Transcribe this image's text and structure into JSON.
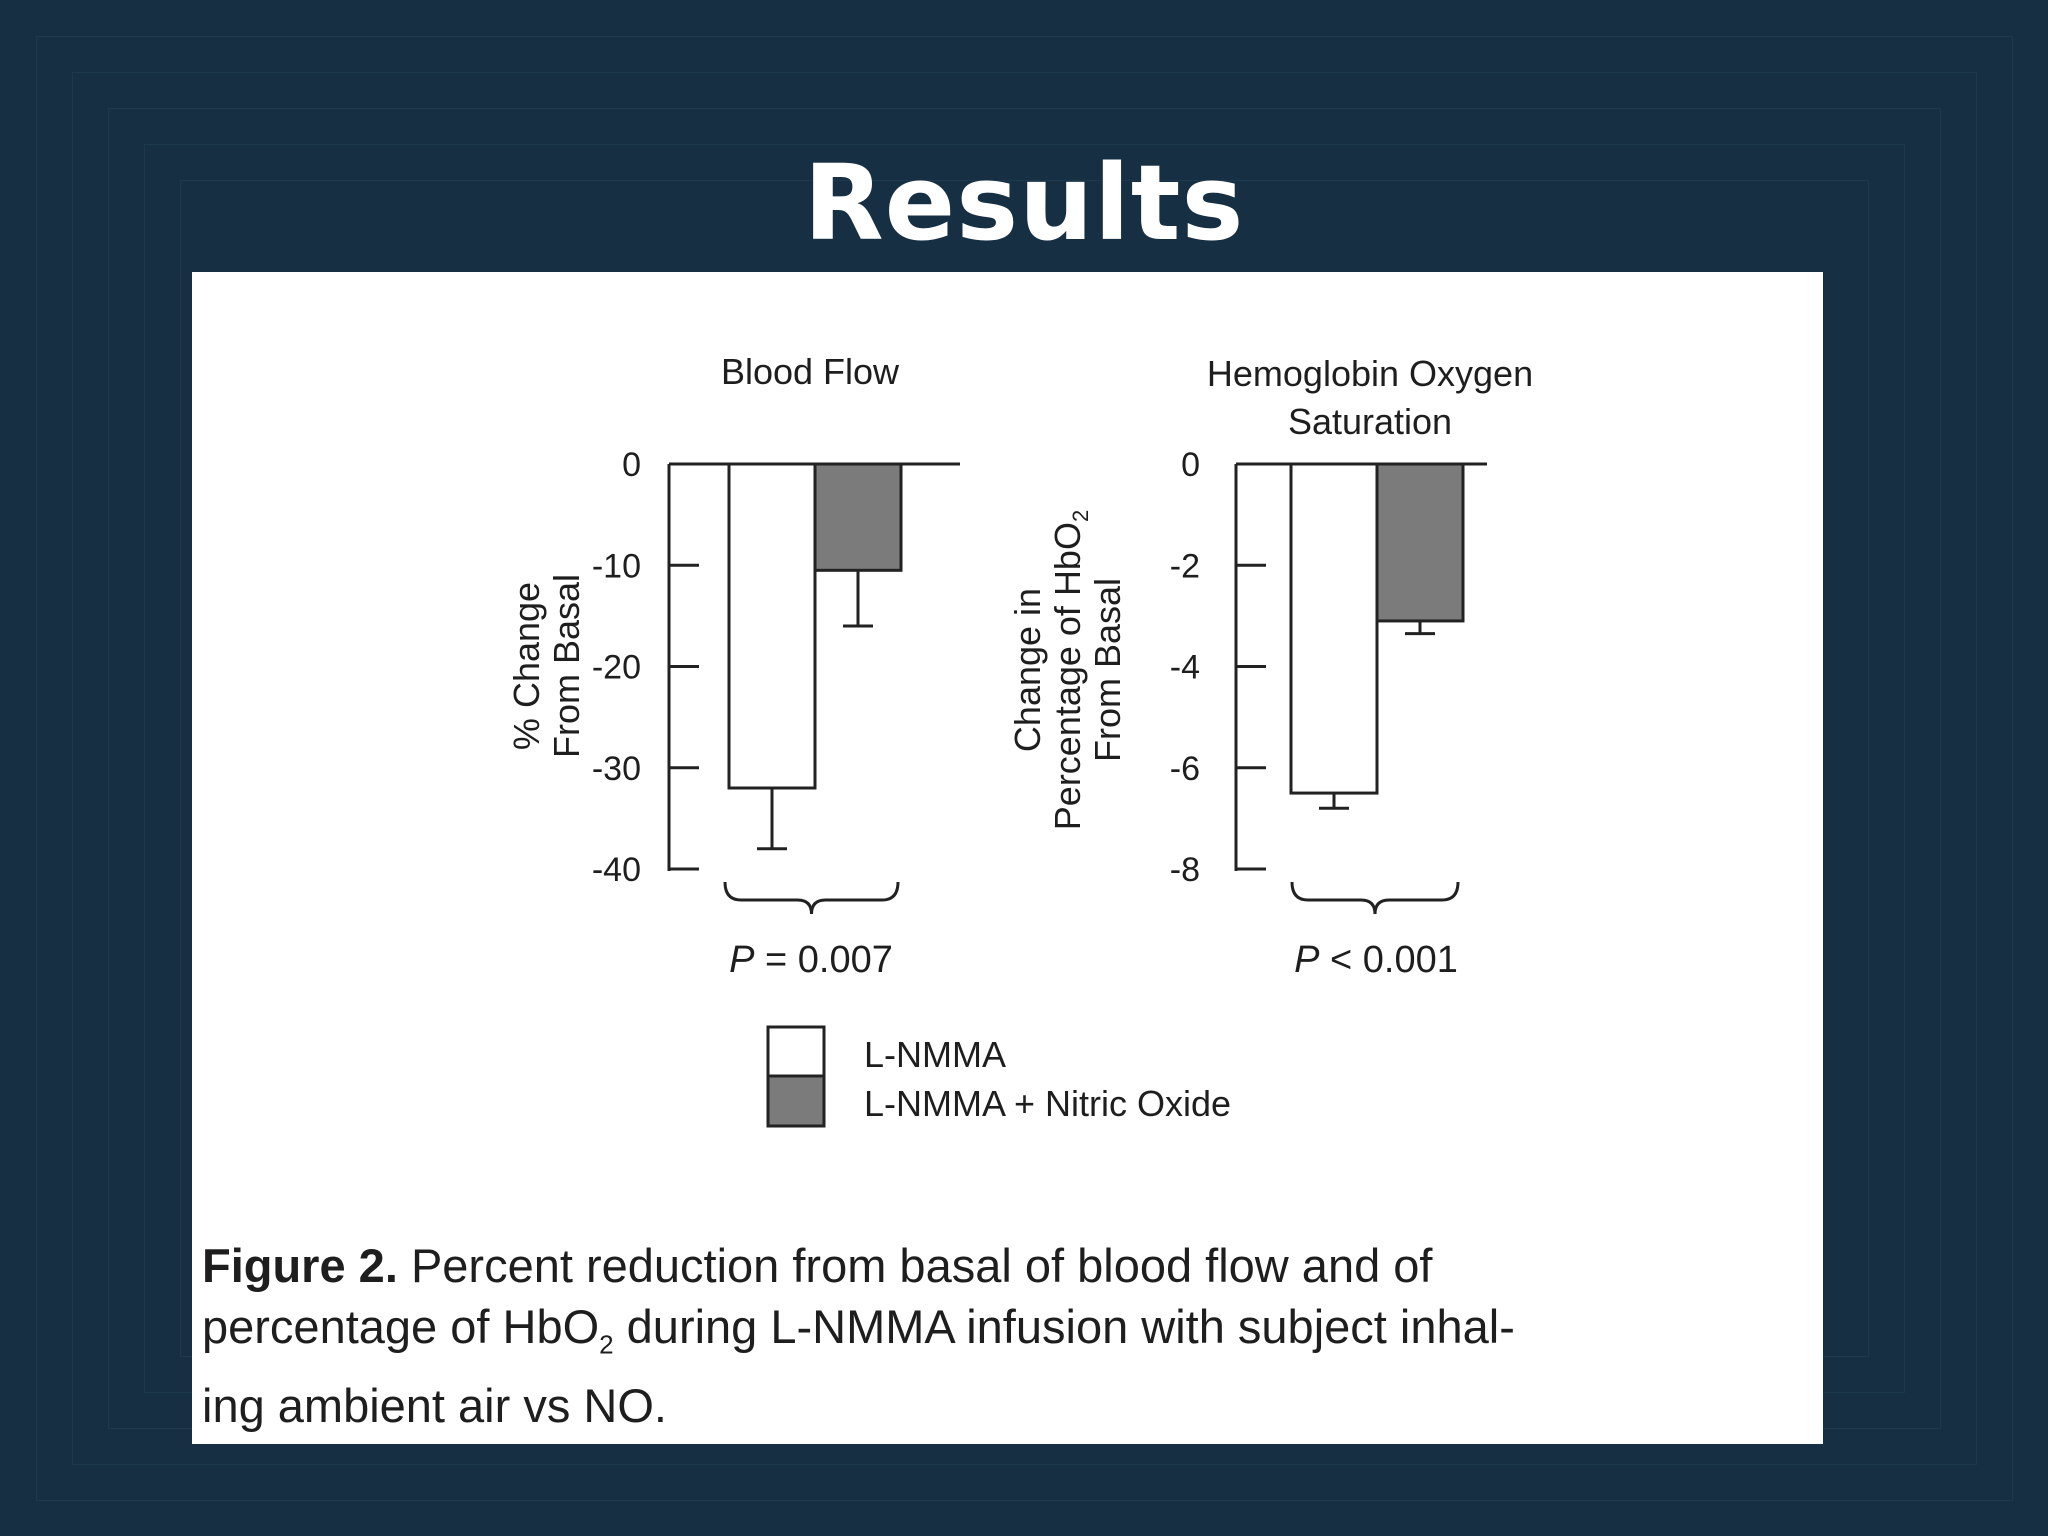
{
  "slide": {
    "title": "Results"
  },
  "legend": [
    {
      "label": "L-NMMA",
      "color": "#ffffff"
    },
    {
      "label": "L-NMMA + Nitric Oxide",
      "color": "#7b7b7b"
    }
  ],
  "caption": {
    "label": "Figure 2.",
    "line1": "Percent reduction from basal of blood flow and of",
    "line2_before": "percentage of HbO",
    "line2_sub": "2",
    "line2_after": " during L-NMMA infusion with subject inhal-",
    "line3": "ing ambient air vs NO."
  },
  "chart_data": [
    {
      "type": "bar",
      "title": "Blood Flow",
      "ylabel": [
        "% Change",
        "From Basal"
      ],
      "ylim": [
        -40,
        0
      ],
      "yticks": [
        0,
        -10,
        -20,
        -30,
        -40
      ],
      "ytick_labels": [
        "0",
        "-10",
        "-20",
        "-30",
        "-40"
      ],
      "series": [
        {
          "name": "L-NMMA",
          "value": -32,
          "error": 6,
          "color": "#ffffff"
        },
        {
          "name": "L-NMMA + Nitric Oxide",
          "value": -10.5,
          "error": 5.5,
          "color": "#7b7b7b"
        }
      ],
      "p_italic": "P",
      "p_rest": " = 0.007"
    },
    {
      "type": "bar",
      "title": [
        "Hemoglobin Oxygen",
        "Saturation"
      ],
      "ylabel": [
        "Change in",
        "Percentage of HbO",
        "From Basal"
      ],
      "ylabel_sub": "2",
      "ylim": [
        -8,
        0
      ],
      "yticks": [
        0,
        -2,
        -4,
        -6,
        -8
      ],
      "ytick_labels": [
        "0",
        "-2",
        "-4",
        "-6",
        "-8"
      ],
      "series": [
        {
          "name": "L-NMMA",
          "value": -6.5,
          "error": 0.3,
          "color": "#ffffff"
        },
        {
          "name": "L-NMMA + Nitric Oxide",
          "value": -3.1,
          "error": 0.25,
          "color": "#7b7b7b"
        }
      ],
      "p_italic": "P",
      "p_rest": " < 0.001"
    }
  ]
}
